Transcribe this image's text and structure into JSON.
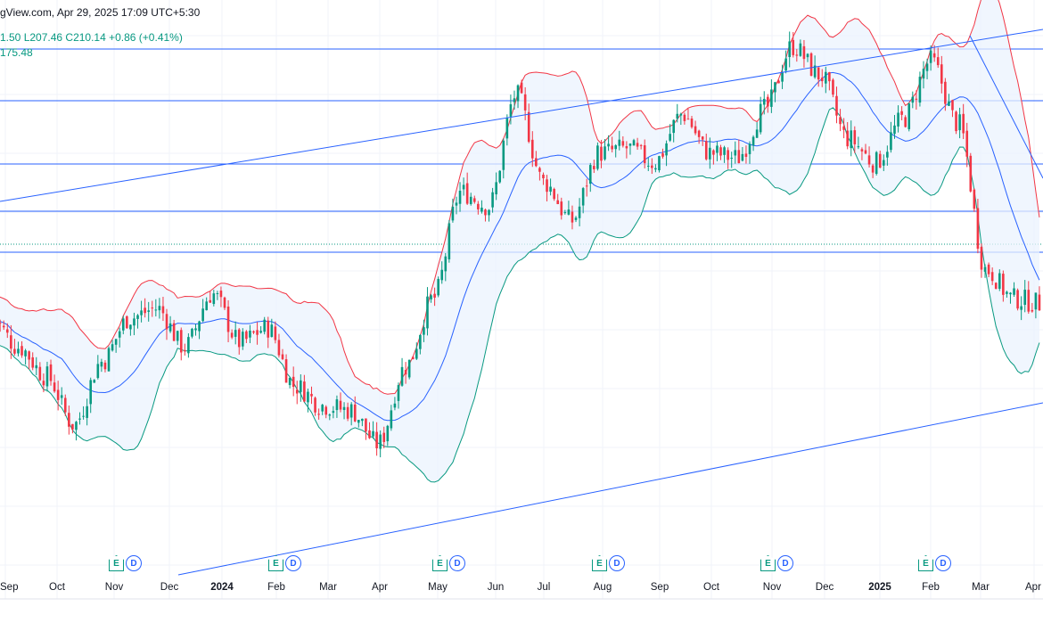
{
  "header": {
    "source_line": "gView.com, Apr 29, 2025 17:09 UTC+5:30",
    "ohlc_line": "1.50  L207.46  C210.14  +0.86 (+0.41%)",
    "indicator_value": "175.48"
  },
  "colors": {
    "up": "#089981",
    "down": "#f23645",
    "upper_band": "#f23645",
    "lower_band": "#089981",
    "basis": "#2962ff",
    "band_fill": "#ebf3fd",
    "trendline": "#2962ff",
    "hline": "#2962ff",
    "dotted": "#089981"
  },
  "earnings_badges": [
    {
      "e": "E",
      "d": "D"
    },
    {
      "e": "E",
      "d": "D"
    },
    {
      "e": "E",
      "d": "D"
    },
    {
      "e": "E",
      "d": "D"
    },
    {
      "e": "E",
      "d": "D"
    },
    {
      "e": "E",
      "d": "D"
    }
  ],
  "chart_data": {
    "type": "candlestick",
    "indicator": "Bollinger Bands",
    "x_ticks": [
      "Sep",
      "Oct",
      "Nov",
      "Dec",
      "2024",
      "Feb",
      "Mar",
      "Apr",
      "May",
      "Jun",
      "Jul",
      "Aug",
      "Sep",
      "Oct",
      "Nov",
      "Dec",
      "2025",
      "Feb",
      "Mar",
      "Apr"
    ],
    "bold_ticks": [
      "2024",
      "2025"
    ],
    "grid": true,
    "horizontal_levels_note": "five horizontal levels and one dotted level drawn without price labels",
    "series": [
      {
        "name": "",
        "close_path": [
          [
            "Sep 2023",
            0.52
          ],
          [
            "Oct 2023",
            0.46
          ],
          [
            "Nov 2023",
            0.4
          ],
          [
            "Nov 2023 end",
            0.3
          ],
          [
            "Dec 2023",
            0.43
          ],
          [
            "Dec 2023 mid",
            0.52
          ],
          [
            "2024",
            0.54
          ],
          [
            "Jan 2024 end",
            0.46
          ],
          [
            "Feb 2024",
            0.57
          ],
          [
            "Feb 2024 mid",
            0.47
          ],
          [
            "Mar 2024",
            0.5
          ],
          [
            "Mar 2024 mid",
            0.38
          ],
          [
            "Apr 2024",
            0.34
          ],
          [
            "Apr 2024 mid",
            0.33
          ],
          [
            "May 2024",
            0.26
          ],
          [
            "May 2024 mid",
            0.42
          ],
          [
            "Jun 2024",
            0.56
          ],
          [
            "Jun 2024 mid",
            0.78
          ],
          [
            "Jul 2024",
            0.75
          ],
          [
            "Jul 2024 mid",
            0.98
          ],
          [
            "Aug 2024",
            0.8
          ],
          [
            "Aug 2024 mid",
            0.72
          ],
          [
            "Sep 2024",
            0.86
          ],
          [
            "Sep 2024 mid",
            0.87
          ],
          [
            "Oct 2024",
            0.84
          ],
          [
            "Oct 2024 mid",
            0.94
          ],
          [
            "Nov 2024",
            0.86
          ],
          [
            "Nov 2024 mid",
            0.85
          ],
          [
            "Dec 2024",
            0.95
          ],
          [
            "Dec 2024 mid",
            1.08
          ],
          [
            "2025",
            1.02
          ],
          [
            "Jan 2025 mid",
            0.89
          ],
          [
            "Feb 2025",
            0.84
          ],
          [
            "Feb 2025 mid",
            0.93
          ],
          [
            "Mar 2025",
            1.05
          ],
          [
            "Mar 2025 mid",
            0.92
          ],
          [
            "Apr 2025",
            0.62
          ],
          [
            "Apr 2025 mid",
            0.56
          ],
          [
            "Apr 29 2025",
            0.55
          ]
        ]
      }
    ]
  }
}
